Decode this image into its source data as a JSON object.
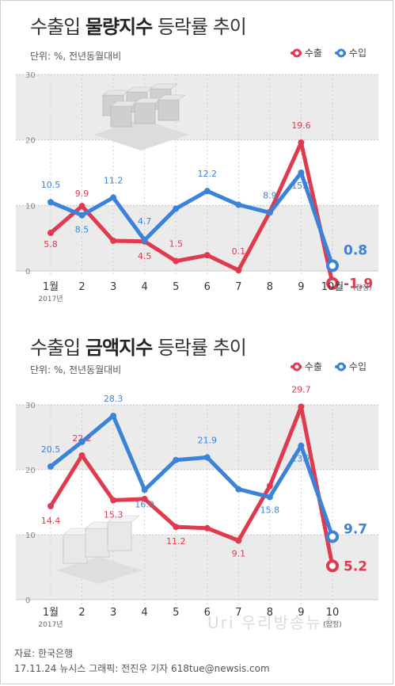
{
  "colors": {
    "export": "#e03a4f",
    "import": "#3a83d8",
    "band": "#ebebeb",
    "grid": "#bbbbbb"
  },
  "chart_data": [
    {
      "type": "line",
      "title_prefix": "수출입 ",
      "title_bold": "물량지수",
      "title_suffix": " 등락률 추이",
      "unit": "단위: %, 전년동월대비",
      "categories": [
        "1월",
        "2",
        "3",
        "4",
        "5",
        "6",
        "7",
        "8",
        "9",
        "10월"
      ],
      "x_sublabel_first": "2017년",
      "x_sublabel_last": "(잠정)",
      "ylim": [
        0,
        30
      ],
      "yticks": [
        0,
        10,
        20,
        30
      ],
      "legend_placement": "top-right",
      "series": [
        {
          "name": "수출",
          "values": [
            5.8,
            9.9,
            4.6,
            4.5,
            1.5,
            2.4,
            0.1,
            9.0,
            19.6,
            -1.9
          ],
          "labels": [
            "5.8",
            "9.9",
            "",
            "4.5",
            "1.5",
            "",
            "0.1",
            "",
            "19.6",
            "-1.9"
          ]
        },
        {
          "name": "수입",
          "values": [
            10.5,
            8.5,
            11.2,
            4.7,
            9.5,
            12.2,
            10.1,
            8.9,
            15.0,
            0.8
          ],
          "labels": [
            "10.5",
            "8.5",
            "11.2",
            "4.7",
            "",
            "12.2",
            "",
            "8.9",
            "15.0",
            "0.8"
          ]
        }
      ]
    },
    {
      "type": "line",
      "title_prefix": "수출입 ",
      "title_bold": "금액지수",
      "title_suffix": " 등락률 추이",
      "unit": "단위: %, 전년동월대비",
      "categories": [
        "1월",
        "2",
        "3",
        "4",
        "5",
        "6",
        "7",
        "8",
        "9",
        "10"
      ],
      "x_sublabel_first": "2017년",
      "x_sublabel_last": "(잠정)",
      "ylim": [
        0,
        30
      ],
      "yticks": [
        0,
        10,
        20,
        30
      ],
      "legend_placement": "top-right",
      "series": [
        {
          "name": "수출",
          "values": [
            14.4,
            22.2,
            15.3,
            15.5,
            11.2,
            11.0,
            9.1,
            17.5,
            29.7,
            5.2
          ],
          "labels": [
            "14.4",
            "22.2",
            "15.3",
            "",
            "11.2",
            "",
            "9.1",
            "",
            "29.7",
            "5.2"
          ]
        },
        {
          "name": "수입",
          "values": [
            20.5,
            24.3,
            28.3,
            16.9,
            21.5,
            21.9,
            17.0,
            15.8,
            23.7,
            9.7
          ],
          "labels": [
            "20.5",
            "",
            "28.3",
            "16.9",
            "",
            "21.9",
            "",
            "15.8",
            "23.7",
            "9.7"
          ]
        }
      ]
    }
  ],
  "footer": {
    "source": "자료: 한국은행",
    "credit": "17.11.24 뉴시스 그래픽: 전진우 기자 618tue@newsis.com"
  },
  "watermark": "Uri 우리방송뉴스"
}
